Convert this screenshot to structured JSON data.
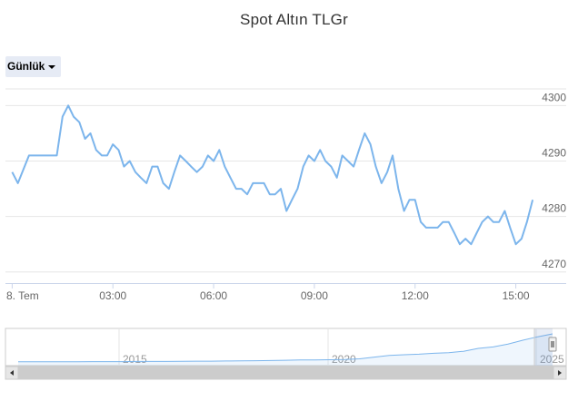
{
  "chart_data": {
    "type": "line",
    "title": "Spot Altın TLGr",
    "range_selector": {
      "label": "Günlük"
    },
    "x_tick_labels": [
      "8. Tem",
      "03:00",
      "06:00",
      "09:00",
      "12:00",
      "15:00"
    ],
    "y_ticks": [
      4270,
      4280,
      4290,
      4300
    ],
    "ylim": [
      4268,
      4303
    ],
    "xlim": [
      -0.2,
      16.5
    ],
    "grid": true,
    "series": [
      {
        "color": "#7cb5ec",
        "x": [
          0,
          0.17,
          0.5,
          0.83,
          1.0,
          1.33,
          1.5,
          1.67,
          1.83,
          2.0,
          2.17,
          2.33,
          2.5,
          2.67,
          2.83,
          3.0,
          3.17,
          3.33,
          3.5,
          3.67,
          3.83,
          4.0,
          4.17,
          4.33,
          4.5,
          4.67,
          4.83,
          5.0,
          5.17,
          5.33,
          5.5,
          5.67,
          5.83,
          6.0,
          6.17,
          6.33,
          6.5,
          6.67,
          6.83,
          7.0,
          7.17,
          7.33,
          7.5,
          7.67,
          7.83,
          8.0,
          8.17,
          8.33,
          8.5,
          8.67,
          8.83,
          9.0,
          9.17,
          9.33,
          9.5,
          9.67,
          9.83,
          10.0,
          10.17,
          10.33,
          10.5,
          10.67,
          10.83,
          11.0,
          11.17,
          11.33,
          11.5,
          11.67,
          11.83,
          12.0,
          12.17,
          12.33,
          12.5,
          12.67,
          12.83,
          13.0,
          13.17,
          13.33,
          13.5,
          13.67,
          13.83,
          14.0,
          14.17,
          14.33,
          14.5,
          14.67,
          14.83,
          15.0,
          15.17,
          15.33,
          15.5
        ],
        "y": [
          4288,
          4286,
          4291,
          4291,
          4291,
          4291,
          4298,
          4300,
          4298,
          4297,
          4294,
          4295,
          4292,
          4291,
          4291,
          4293,
          4292,
          4289,
          4290,
          4288,
          4287,
          4286,
          4289,
          4289,
          4286,
          4285,
          4288,
          4291,
          4290,
          4289,
          4288,
          4289,
          4291,
          4290,
          4292,
          4289,
          4287,
          4285,
          4285,
          4284,
          4286,
          4286,
          4286,
          4284,
          4284,
          4285,
          4281,
          4283,
          4285,
          4289,
          4291,
          4290,
          4292,
          4290,
          4289,
          4287,
          4291,
          4290,
          4289,
          4292,
          4295,
          4293,
          4289,
          4286,
          4288,
          4291,
          4285,
          4281,
          4283,
          4283,
          4279,
          4278,
          4278,
          4278,
          4279,
          4279,
          4277,
          4275,
          4276,
          4275,
          4277,
          4279,
          4280,
          4279,
          4279,
          4281,
          4278,
          4275,
          4276,
          4279,
          4283
        ]
      }
    ],
    "navigator": {
      "tick_labels": [
        "2015",
        "2020",
        "2025"
      ],
      "series": [
        0.04,
        0.04,
        0.04,
        0.04,
        0.04,
        0.045,
        0.045,
        0.045,
        0.05,
        0.05,
        0.05,
        0.055,
        0.06,
        0.06,
        0.065,
        0.07,
        0.075,
        0.08,
        0.09,
        0.1,
        0.1,
        0.11,
        0.12,
        0.14,
        0.2,
        0.26,
        0.28,
        0.3,
        0.33,
        0.35,
        0.4,
        0.5,
        0.55,
        0.65,
        0.78,
        0.9,
        1.0
      ]
    }
  }
}
